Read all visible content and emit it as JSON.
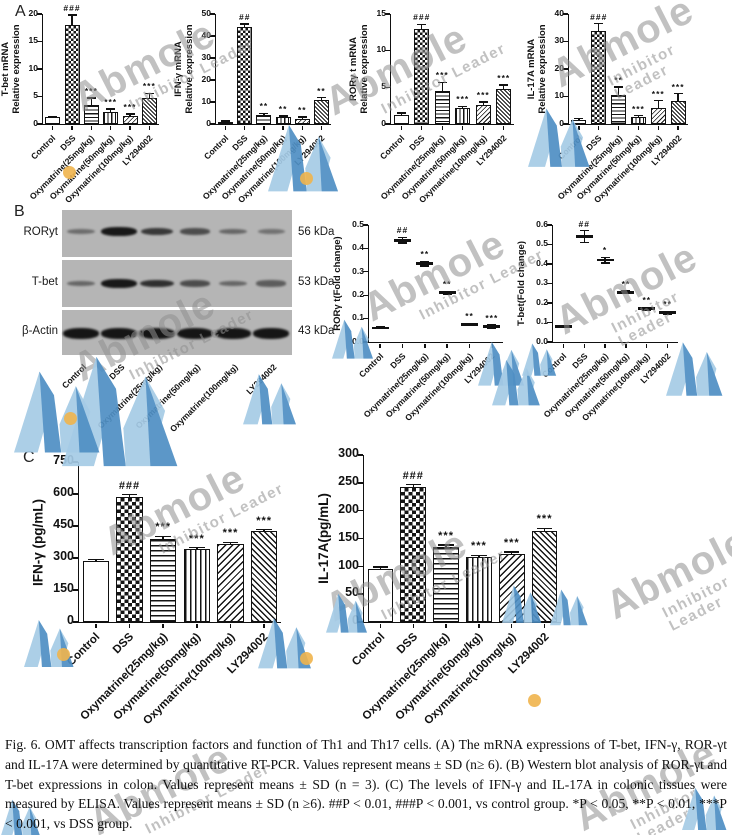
{
  "panels": {
    "a": "A",
    "b": "B",
    "c": "C"
  },
  "categories": [
    "Control",
    "DSS",
    "Oxymatrine(25mg/kg)",
    "Oxymatrine(50mg/kg)",
    "Oxymatrine(100mg/kg)",
    "LY294002"
  ],
  "watermark": {
    "text": "Abmole",
    "subtext": "Inhibitor Leader",
    "text_color": "#8f8f8f",
    "logo_blue_light": "#a5cbe6",
    "logo_blue_dark": "#4f8fc4",
    "logo_dot_orange": "#f0b44c"
  },
  "western_blot": {
    "rows": [
      {
        "label": "RORyt",
        "kda": "56 kDa",
        "band_intensities": [
          0.3,
          0.97,
          0.72,
          0.55,
          0.35,
          0.25
        ]
      },
      {
        "label": "T-bet",
        "kda": "53 kDa",
        "band_intensities": [
          0.35,
          0.97,
          0.78,
          0.55,
          0.35,
          0.42
        ]
      },
      {
        "label": "β-Actin",
        "kda": "43 kDa",
        "band_intensities": [
          1,
          1,
          1,
          1,
          1,
          1
        ]
      }
    ]
  },
  "chart_data": [
    {
      "id": "mrna_tbet",
      "panel": "A",
      "type": "bar",
      "title": "",
      "xlabel": "",
      "ylabel": "T-bet mRNA Relative expression",
      "ylabel_lines": [
        "T-bet mRNA",
        "Relative expression"
      ],
      "ylim": [
        0,
        20
      ],
      "yticks": [
        "0",
        "5",
        "10",
        "15",
        "20"
      ],
      "values": [
        1.2,
        18,
        3.5,
        2.2,
        1.5,
        4.8
      ],
      "errors": [
        0.2,
        1.8,
        1.2,
        0.5,
        0.3,
        0.8
      ],
      "sig": [
        "",
        "###",
        "***",
        "***",
        "***",
        "***"
      ]
    },
    {
      "id": "mrna_ifng",
      "panel": "A",
      "type": "bar",
      "title": "",
      "xlabel": "",
      "ylabel": "IFN-γ mRNA Relative expression",
      "ylabel_lines": [
        "IFN-γ mRNA",
        "Relative expression"
      ],
      "ylim": [
        0,
        50
      ],
      "yticks": [
        "0",
        "10",
        "20",
        "30",
        "40",
        "50"
      ],
      "values": [
        1,
        44,
        4,
        3,
        2.5,
        11
      ],
      "errors": [
        0.3,
        1.5,
        0.9,
        0.7,
        0.6,
        1
      ],
      "sig": [
        "",
        "##",
        "**",
        "**",
        "**",
        "**"
      ]
    },
    {
      "id": "mrna_rorgt",
      "panel": "A",
      "type": "bar",
      "title": "",
      "xlabel": "",
      "ylabel": "RORγ t mRNA Relative expression",
      "ylabel_lines": [
        "RORγ t mRNA",
        "Relative expression"
      ],
      "ylim": [
        0,
        15
      ],
      "yticks": [
        "0",
        "5",
        "10",
        "15"
      ],
      "values": [
        1.2,
        13,
        4.5,
        2.2,
        2.6,
        4.8
      ],
      "errors": [
        0.3,
        0.6,
        1.2,
        0.2,
        0.4,
        0.5
      ],
      "sig": [
        "",
        "###",
        "***",
        "***",
        "***",
        "***"
      ]
    },
    {
      "id": "mrna_il17a",
      "panel": "A",
      "type": "bar",
      "title": "",
      "xlabel": "",
      "ylabel": "IL-17A mRNA Relative expression",
      "ylabel_lines": [
        "IL-17A mRNA",
        "Relative expression"
      ],
      "ylim": [
        0,
        40
      ],
      "yticks": [
        "0",
        "10",
        "20",
        "30",
        "40"
      ],
      "values": [
        1.5,
        34,
        10.5,
        2.5,
        6,
        8.5
      ],
      "errors": [
        0.4,
        2.5,
        3,
        0.5,
        2.5,
        2.5
      ],
      "sig": [
        "",
        "###",
        "**",
        "***",
        "***",
        "***"
      ]
    },
    {
      "id": "wb_rorgt",
      "panel": "B",
      "type": "scatter",
      "title": "",
      "xlabel": "",
      "ylabel": "RORγ t(Fold change)",
      "ylabel_lines": [
        "RORγ t(Fold change)"
      ],
      "ylim": [
        0,
        0.5
      ],
      "yticks": [
        "0.0",
        "0.1",
        "0.2",
        "0.3",
        "0.4",
        "0.5"
      ],
      "values": [
        0.06,
        0.435,
        0.335,
        0.21,
        0.075,
        0.065
      ],
      "errors": [
        0.004,
        0.012,
        0.01,
        0.006,
        0.005,
        0.008
      ],
      "sig": [
        "",
        "##",
        "**",
        "**",
        "**",
        "***"
      ]
    },
    {
      "id": "wb_tbet",
      "panel": "B",
      "type": "scatter",
      "title": "",
      "xlabel": "",
      "ylabel": "T-bet(Fold change)",
      "ylabel_lines": [
        "T-bet(Fold change)"
      ],
      "ylim": [
        0,
        0.6
      ],
      "yticks": [
        "0.0",
        "0.1",
        "0.2",
        "0.3",
        "0.4",
        "0.5",
        "0.6"
      ],
      "values": [
        0.08,
        0.54,
        0.42,
        0.255,
        0.17,
        0.15
      ],
      "errors": [
        0.005,
        0.03,
        0.015,
        0.008,
        0.008,
        0.008
      ],
      "sig": [
        "",
        "##",
        "*",
        "**",
        "**",
        "**"
      ]
    },
    {
      "id": "elisa_ifng",
      "panel": "C",
      "type": "bar",
      "title": "",
      "xlabel": "",
      "ylabel": "IFN-γ (pg/mL)",
      "ylabel_lines": [
        "IFN-γ (pg/mL)"
      ],
      "ylim": [
        0,
        750
      ],
      "yticks": [
        "0",
        "150",
        "300",
        "450",
        "600",
        "750"
      ],
      "values": [
        285,
        585,
        390,
        340,
        365,
        425
      ],
      "errors": [
        8,
        12,
        12,
        8,
        8,
        8
      ],
      "sig": [
        "",
        "###",
        "***",
        "***",
        "***",
        "***"
      ]
    },
    {
      "id": "elisa_il17a",
      "panel": "C",
      "type": "bar",
      "title": "",
      "xlabel": "",
      "ylabel": "IL-17A(pg/mL)",
      "ylabel_lines": [
        "IL-17A(pg/mL)"
      ],
      "ylim": [
        0,
        300
      ],
      "yticks": [
        "0",
        "50",
        "100",
        "150",
        "200",
        "250",
        "300"
      ],
      "values": [
        96,
        242,
        134,
        117,
        123,
        163
      ],
      "errors": [
        3,
        5,
        4,
        3,
        3,
        5
      ],
      "sig": [
        "",
        "###",
        "***",
        "***",
        "***",
        "***"
      ]
    }
  ],
  "caption": "Fig. 6. OMT affects transcription factors and function of Th1 and Th17 cells. (A) The mRNA expressions of T-bet, IFN-γ, ROR-γt and IL-17A were determined by quantitative RT-PCR. Values represent means ± SD (n≥ 6). (B) Western blot analysis of ROR-γt and T-bet expressions in colon. Values represent means ± SD (n = 3). (C) The levels of IFN-γ and IL-17A in colonic tissues were measured by ELISA. Values represent means ± SD (n ≥6). ##P < 0.01, ###P < 0.001, vs control group. *P < 0.05, **P < 0.01, ***P < 0.001, vs DSS group."
}
